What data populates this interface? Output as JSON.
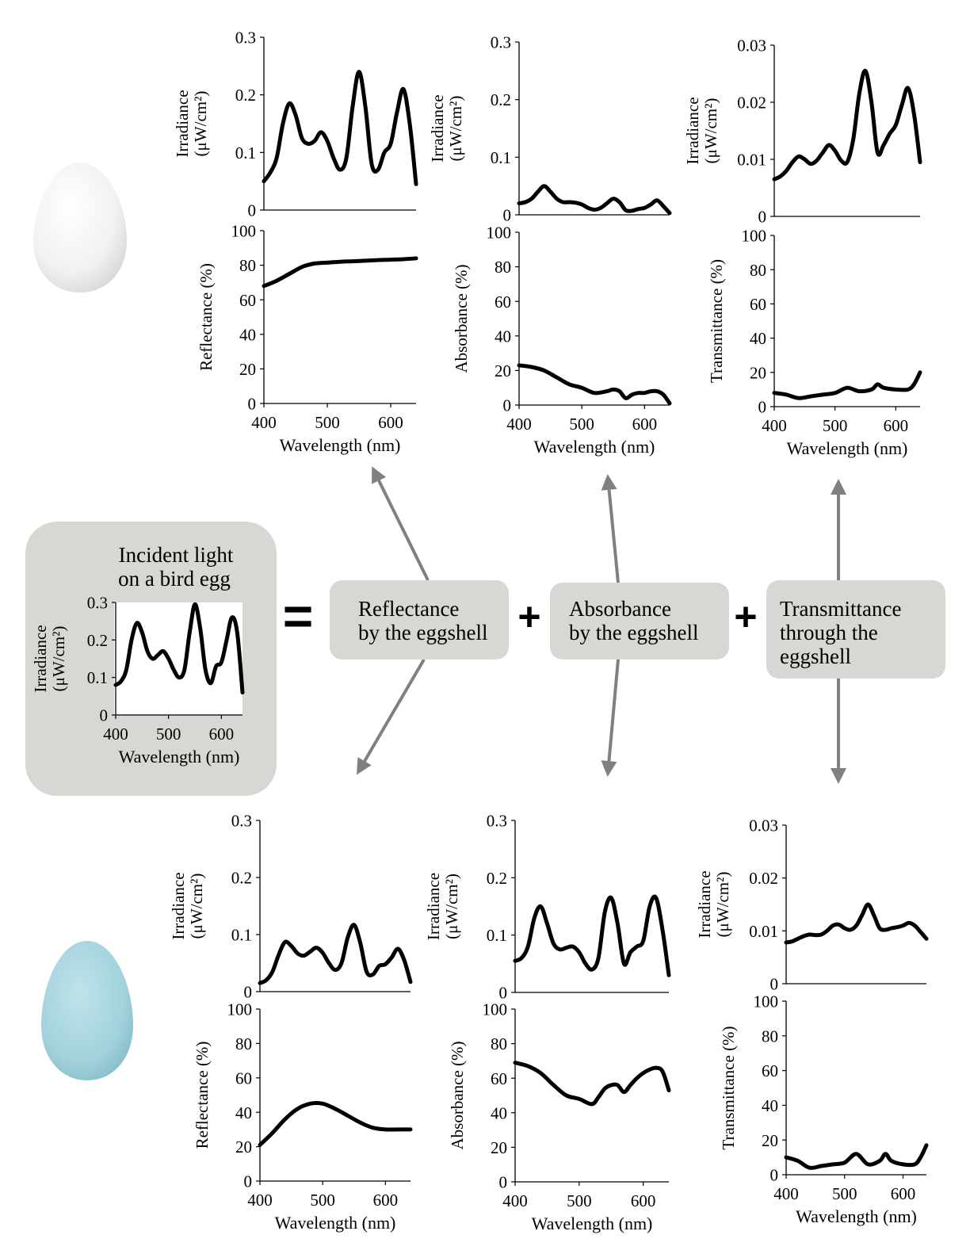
{
  "incident_box": {
    "title_line1": "Incident light",
    "title_line2": "on a bird egg"
  },
  "operators": {
    "equals": "=",
    "plus": "+"
  },
  "process_boxes": [
    {
      "line1": "Reflectance",
      "line2": "by the eggshell",
      "line3": ""
    },
    {
      "line1": "Absorbance",
      "line2": "by the eggshell",
      "line3": ""
    },
    {
      "line1": "Transmittance",
      "line2": "through the",
      "line3": "eggshell"
    }
  ],
  "eggs": [
    {
      "name": "white-egg",
      "color": "#f4f4f4"
    },
    {
      "name": "blue-egg",
      "color": "#a9d6df"
    }
  ],
  "colors": {
    "box_fill": "#d9d7d3",
    "arrow": "#808080",
    "curve": "#000000"
  },
  "chart_data": [
    {
      "id": "incident",
      "type": "line",
      "ylabel_line1": "Irradiance",
      "ylabel_line2": "(μW/cm²)",
      "xlabel": "Wavelength (nm)",
      "xlim": [
        400,
        640
      ],
      "ylim": [
        0,
        0.3
      ],
      "xticks": [
        "400",
        "500",
        "600"
      ],
      "yticks": [
        "0",
        "0.1",
        "0.2",
        "0.3"
      ],
      "x": [
        400,
        410,
        420,
        430,
        440,
        450,
        460,
        470,
        480,
        490,
        500,
        510,
        520,
        530,
        540,
        550,
        560,
        570,
        580,
        590,
        600,
        610,
        620,
        630,
        640
      ],
      "series": [
        {
          "values": [
            0.08,
            0.09,
            0.12,
            0.2,
            0.245,
            0.22,
            0.17,
            0.15,
            0.16,
            0.17,
            0.15,
            0.12,
            0.1,
            0.12,
            0.22,
            0.295,
            0.23,
            0.12,
            0.085,
            0.13,
            0.14,
            0.2,
            0.26,
            0.22,
            0.06
          ]
        }
      ]
    },
    {
      "id": "white-refl-irr",
      "type": "line",
      "ylabel_line1": "Irradiance",
      "ylabel_line2": "(μW/cm²)",
      "xlabel": "",
      "xlim": [
        400,
        640
      ],
      "ylim": [
        0,
        0.3
      ],
      "xticks": [],
      "yticks": [
        "0",
        "0.1",
        "0.2",
        "0.3"
      ],
      "x": [
        400,
        410,
        420,
        430,
        440,
        450,
        460,
        470,
        480,
        490,
        500,
        510,
        520,
        530,
        540,
        550,
        560,
        570,
        580,
        590,
        600,
        610,
        620,
        630,
        640
      ],
      "series": [
        {
          "values": [
            0.05,
            0.065,
            0.09,
            0.15,
            0.185,
            0.165,
            0.125,
            0.115,
            0.12,
            0.135,
            0.12,
            0.09,
            0.07,
            0.09,
            0.18,
            0.24,
            0.18,
            0.08,
            0.07,
            0.1,
            0.115,
            0.17,
            0.21,
            0.15,
            0.045
          ]
        }
      ]
    },
    {
      "id": "white-reflectance",
      "type": "line",
      "ylabel_line1": "Reflectance (%)",
      "ylabel_line2": "",
      "xlabel": "Wavelength (nm)",
      "xlim": [
        400,
        640
      ],
      "ylim": [
        0,
        100
      ],
      "xticks": [
        "400",
        "500",
        "600"
      ],
      "yticks": [
        "0",
        "20",
        "40",
        "60",
        "80",
        "100"
      ],
      "x": [
        400,
        420,
        440,
        460,
        480,
        500,
        520,
        540,
        560,
        580,
        600,
        620,
        640
      ],
      "series": [
        {
          "values": [
            68,
            71,
            75,
            79,
            81,
            81.5,
            82,
            82.3,
            82.6,
            83,
            83.2,
            83.5,
            84
          ]
        }
      ]
    },
    {
      "id": "white-abs-irr",
      "type": "line",
      "ylabel_line1": "Irradiance",
      "ylabel_line2": "(μW/cm²)",
      "xlabel": "",
      "xlim": [
        400,
        640
      ],
      "ylim": [
        0,
        0.3
      ],
      "xticks": [],
      "yticks": [
        "0",
        "0.1",
        "0.2",
        "0.3"
      ],
      "x": [
        400,
        410,
        420,
        430,
        440,
        450,
        460,
        470,
        480,
        490,
        500,
        510,
        520,
        530,
        540,
        550,
        560,
        570,
        580,
        590,
        600,
        610,
        620,
        630,
        640
      ],
      "series": [
        {
          "values": [
            0.02,
            0.022,
            0.028,
            0.04,
            0.05,
            0.04,
            0.028,
            0.022,
            0.022,
            0.021,
            0.018,
            0.012,
            0.009,
            0.012,
            0.02,
            0.028,
            0.022,
            0.008,
            0.007,
            0.01,
            0.012,
            0.018,
            0.025,
            0.015,
            0.003
          ]
        }
      ]
    },
    {
      "id": "white-absorbance",
      "type": "line",
      "ylabel_line1": "Absorbance (%)",
      "ylabel_line2": "",
      "xlabel": "Wavelength (nm)",
      "xlim": [
        400,
        640
      ],
      "ylim": [
        0,
        100
      ],
      "xticks": [
        "400",
        "500",
        "600"
      ],
      "yticks": [
        "0",
        "20",
        "40",
        "60",
        "80",
        "100"
      ],
      "x": [
        400,
        420,
        440,
        460,
        480,
        500,
        520,
        540,
        550,
        560,
        570,
        580,
        590,
        600,
        610,
        620,
        630,
        640
      ],
      "series": [
        {
          "values": [
            23,
            22,
            20,
            16,
            12,
            10,
            7,
            8,
            9,
            8,
            4,
            6,
            7,
            7,
            8,
            8,
            6,
            1
          ]
        }
      ]
    },
    {
      "id": "white-trans-irr",
      "type": "line",
      "ylabel_line1": "Irradiance",
      "ylabel_line2": "(μW/cm²)",
      "xlabel": "",
      "xlim": [
        400,
        640
      ],
      "ylim": [
        0,
        0.03
      ],
      "xticks": [],
      "yticks": [
        "0",
        "0.01",
        "0.02",
        "0.03"
      ],
      "x": [
        400,
        410,
        420,
        430,
        440,
        450,
        460,
        470,
        480,
        490,
        500,
        510,
        520,
        530,
        540,
        550,
        560,
        570,
        580,
        590,
        600,
        610,
        620,
        630,
        640
      ],
      "series": [
        {
          "values": [
            0.0065,
            0.007,
            0.008,
            0.0095,
            0.0105,
            0.01,
            0.0092,
            0.0098,
            0.0112,
            0.0125,
            0.0115,
            0.0098,
            0.0095,
            0.0135,
            0.0215,
            0.0255,
            0.02,
            0.0112,
            0.0125,
            0.0145,
            0.016,
            0.0195,
            0.0225,
            0.018,
            0.0095
          ]
        }
      ]
    },
    {
      "id": "white-transmittance",
      "type": "line",
      "ylabel_line1": "Transmittance (%)",
      "ylabel_line2": "",
      "xlabel": "Wavelength (nm)",
      "xlim": [
        400,
        640
      ],
      "ylim": [
        0,
        100
      ],
      "xticks": [
        "400",
        "500",
        "600"
      ],
      "yticks": [
        "0",
        "20",
        "40",
        "60",
        "80",
        "100"
      ],
      "x": [
        400,
        420,
        440,
        460,
        480,
        500,
        520,
        540,
        560,
        570,
        580,
        600,
        620,
        630,
        640
      ],
      "series": [
        {
          "values": [
            8,
            7,
            5,
            6,
            7,
            8,
            11,
            9,
            10,
            13,
            11,
            10,
            10,
            13,
            20
          ]
        }
      ]
    },
    {
      "id": "blue-refl-irr",
      "type": "line",
      "ylabel_line1": "Irradiance",
      "ylabel_line2": "(μW/cm²)",
      "xlabel": "",
      "xlim": [
        400,
        640
      ],
      "ylim": [
        0,
        0.3
      ],
      "xticks": [],
      "yticks": [
        "0",
        "0.1",
        "0.2",
        "0.3"
      ],
      "x": [
        400,
        410,
        420,
        430,
        440,
        450,
        460,
        470,
        480,
        490,
        500,
        510,
        520,
        530,
        540,
        550,
        560,
        570,
        580,
        590,
        600,
        610,
        620,
        630,
        640
      ],
      "series": [
        {
          "values": [
            0.015,
            0.02,
            0.035,
            0.065,
            0.087,
            0.08,
            0.067,
            0.063,
            0.07,
            0.077,
            0.068,
            0.05,
            0.038,
            0.05,
            0.095,
            0.117,
            0.085,
            0.035,
            0.03,
            0.045,
            0.048,
            0.06,
            0.075,
            0.055,
            0.017
          ]
        }
      ]
    },
    {
      "id": "blue-reflectance",
      "type": "line",
      "ylabel_line1": "Reflectance (%)",
      "ylabel_line2": "",
      "xlabel": "Wavelength (nm)",
      "xlim": [
        400,
        640
      ],
      "ylim": [
        0,
        100
      ],
      "xticks": [
        "400",
        "500",
        "600"
      ],
      "yticks": [
        "0",
        "20",
        "40",
        "60",
        "80",
        "100"
      ],
      "x": [
        400,
        420,
        440,
        460,
        480,
        500,
        520,
        540,
        560,
        580,
        600,
        620,
        640
      ],
      "series": [
        {
          "values": [
            21,
            28,
            36,
            42,
            45,
            45,
            42,
            38,
            34,
            31,
            30,
            30,
            30
          ]
        }
      ]
    },
    {
      "id": "blue-abs-irr",
      "type": "line",
      "ylabel_line1": "Irradiance",
      "ylabel_line2": "(μW/cm²)",
      "xlabel": "",
      "xlim": [
        400,
        640
      ],
      "ylim": [
        0,
        0.3
      ],
      "xticks": [],
      "yticks": [
        "0",
        "0.1",
        "0.2",
        "0.3"
      ],
      "x": [
        400,
        410,
        420,
        430,
        440,
        450,
        460,
        470,
        480,
        490,
        500,
        510,
        520,
        530,
        540,
        550,
        560,
        570,
        580,
        590,
        600,
        610,
        620,
        630,
        640
      ],
      "series": [
        {
          "values": [
            0.055,
            0.06,
            0.08,
            0.13,
            0.15,
            0.12,
            0.085,
            0.075,
            0.078,
            0.08,
            0.07,
            0.05,
            0.04,
            0.06,
            0.14,
            0.165,
            0.12,
            0.05,
            0.07,
            0.08,
            0.09,
            0.15,
            0.165,
            0.11,
            0.03
          ]
        }
      ]
    },
    {
      "id": "blue-absorbance",
      "type": "line",
      "ylabel_line1": "Absorbance (%)",
      "ylabel_line2": "",
      "xlabel": "Wavelength (nm)",
      "xlim": [
        400,
        640
      ],
      "ylim": [
        0,
        100
      ],
      "xticks": [
        "400",
        "500",
        "600"
      ],
      "yticks": [
        "0",
        "20",
        "40",
        "60",
        "80",
        "100"
      ],
      "x": [
        400,
        420,
        440,
        460,
        480,
        500,
        520,
        530,
        540,
        550,
        560,
        570,
        580,
        590,
        600,
        610,
        620,
        630,
        640
      ],
      "series": [
        {
          "values": [
            69,
            67,
            63,
            56,
            50,
            48,
            45,
            49,
            54,
            56,
            56,
            52,
            56,
            60,
            63,
            65,
            66,
            64,
            53
          ]
        }
      ]
    },
    {
      "id": "blue-trans-irr",
      "type": "line",
      "ylabel_line1": "Irradiance",
      "ylabel_line2": "(μW/cm²)",
      "xlabel": "",
      "xlim": [
        400,
        640
      ],
      "ylim": [
        0,
        0.03
      ],
      "xticks": [],
      "yticks": [
        "0",
        "0.01",
        "0.02",
        "0.03"
      ],
      "x": [
        400,
        410,
        420,
        430,
        440,
        450,
        460,
        470,
        480,
        490,
        500,
        510,
        520,
        530,
        540,
        550,
        560,
        570,
        580,
        590,
        600,
        610,
        620,
        630,
        640
      ],
      "series": [
        {
          "values": [
            0.0078,
            0.008,
            0.0085,
            0.009,
            0.0093,
            0.0092,
            0.0093,
            0.01,
            0.011,
            0.0112,
            0.0105,
            0.0102,
            0.011,
            0.013,
            0.015,
            0.013,
            0.0105,
            0.0102,
            0.0105,
            0.0107,
            0.011,
            0.0115,
            0.011,
            0.0098,
            0.0085
          ]
        }
      ]
    },
    {
      "id": "blue-transmittance",
      "type": "line",
      "ylabel_line1": "Transmittance (%)",
      "ylabel_line2": "",
      "xlabel": "Wavelength (nm)",
      "xlim": [
        400,
        640
      ],
      "ylim": [
        0,
        100
      ],
      "xticks": [
        "400",
        "500",
        "600"
      ],
      "yticks": [
        "0",
        "20",
        "40",
        "60",
        "80",
        "100"
      ],
      "x": [
        400,
        420,
        440,
        460,
        480,
        500,
        520,
        540,
        560,
        570,
        580,
        600,
        620,
        630,
        640
      ],
      "series": [
        {
          "values": [
            10,
            8,
            4,
            5,
            6,
            7,
            12,
            6,
            8,
            12,
            8,
            6,
            6,
            10,
            17
          ]
        }
      ]
    }
  ]
}
